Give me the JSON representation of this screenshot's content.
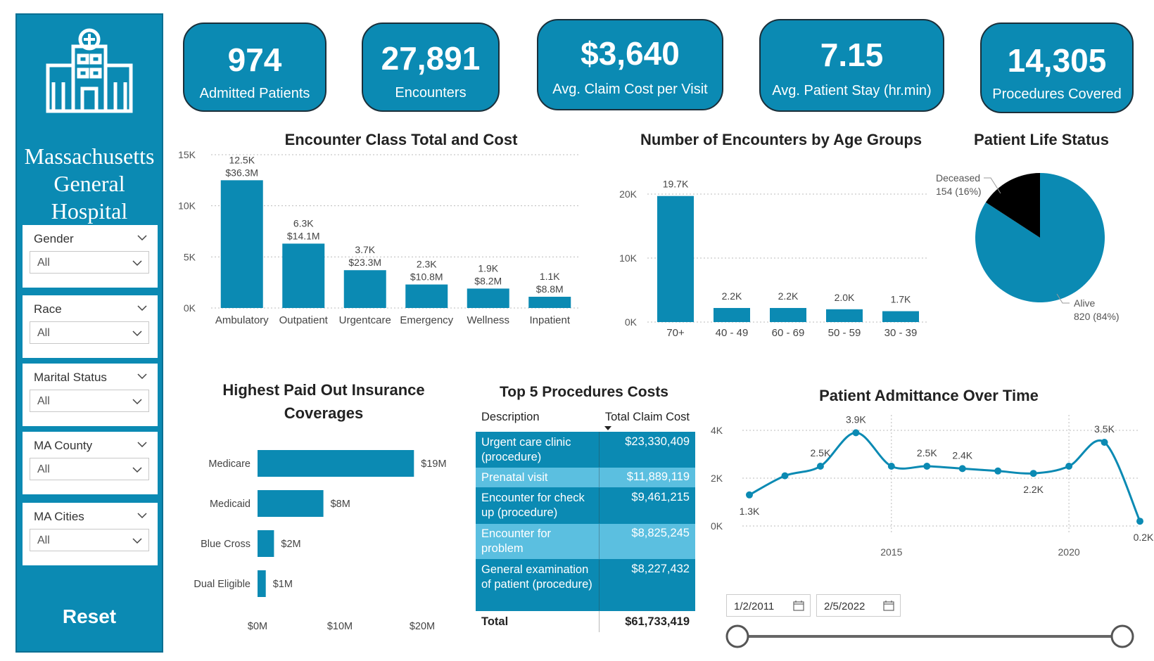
{
  "sidebar": {
    "hospital_name": "Massachusetts General Hospital",
    "filters": [
      {
        "label": "Gender",
        "value": "All"
      },
      {
        "label": "Race",
        "value": "All"
      },
      {
        "label": "Marital Status",
        "value": "All"
      },
      {
        "label": "MA County",
        "value": "All"
      },
      {
        "label": "MA Cities",
        "value": "All"
      }
    ],
    "reset_label": "Reset"
  },
  "kpis": [
    {
      "value": "974",
      "label": "Admitted Patients"
    },
    {
      "value": "27,891",
      "label": "Encounters"
    },
    {
      "value": "$3,640",
      "label": "Avg. Claim Cost per Visit"
    },
    {
      "value": "7.15",
      "label": "Avg. Patient Stay (hr.min)"
    },
    {
      "value": "14,305",
      "label": "Procedures Covered"
    }
  ],
  "colors": {
    "primary": "#0b8ab3",
    "light": "#5bbfe0",
    "dark": "#000000"
  },
  "table": {
    "title": "Top 5 Procedures Costs",
    "headers": {
      "description": "Description",
      "cost": "Total Claim Cost"
    },
    "rows": [
      {
        "description": "Urgent care clinic (procedure)",
        "cost": "$23,330,409"
      },
      {
        "description": "Prenatal visit",
        "cost": "$11,889,119"
      },
      {
        "description": "Encounter for check up (procedure)",
        "cost": "$9,461,215"
      },
      {
        "description": "Encounter for problem",
        "cost": "$8,825,245"
      },
      {
        "description": "General examination of patient (procedure)",
        "cost": "$8,227,432"
      }
    ],
    "total_label": "Total",
    "total_value": "$61,733,419"
  },
  "date_range": {
    "start": "1/2/2011",
    "end": "2/5/2022"
  },
  "chart_data": [
    {
      "type": "bar",
      "title": "Encounter Class Total and Cost",
      "categories": [
        "Ambulatory",
        "Outpatient",
        "Urgentcare",
        "Emergency",
        "Wellness",
        "Inpatient"
      ],
      "values": [
        12.5,
        6.3,
        3.7,
        2.3,
        1.9,
        1.1
      ],
      "data_labels": [
        "12.5K",
        "6.3K",
        "3.7K",
        "2.3K",
        "1.9K",
        "1.1K"
      ],
      "cost_labels": [
        "$36.3M",
        "$14.1M",
        "$23.3M",
        "$10.8M",
        "$8.2M",
        "$8.8M"
      ],
      "yticks": [
        "15K",
        "10K",
        "5K",
        "0K"
      ],
      "ylim": [
        0,
        15
      ]
    },
    {
      "type": "bar",
      "title": "Number of Encounters by Age Groups",
      "categories": [
        "70+",
        "40 - 49",
        "60 - 69",
        "50 - 59",
        "30 - 39"
      ],
      "values": [
        19.7,
        2.2,
        2.2,
        2.0,
        1.7
      ],
      "data_labels": [
        "19.7K",
        "2.2K",
        "2.2K",
        "2.0K",
        "1.7K"
      ],
      "yticks": [
        "20K",
        "10K",
        "0K"
      ],
      "ylim": [
        0,
        20
      ]
    },
    {
      "type": "pie",
      "title": "Patient Life Status",
      "slices": [
        {
          "name": "Alive",
          "value": 820,
          "label": "820 (84%)"
        },
        {
          "name": "Deceased",
          "value": 154,
          "label": "154 (16%)"
        }
      ]
    },
    {
      "type": "bar",
      "title": "Highest Paid Out Insurance Coverages",
      "categories": [
        "Medicare",
        "Medicaid",
        "Blue Cross",
        "Dual Eligible"
      ],
      "values": [
        19,
        8,
        2,
        1
      ],
      "data_labels": [
        "$19M",
        "$8M",
        "$2M",
        "$1M"
      ],
      "xticks": [
        "$0M",
        "$10M",
        "$20M"
      ],
      "xlim": [
        0,
        20
      ]
    },
    {
      "type": "line",
      "title": "Patient Admittance Over Time",
      "x": [
        2011,
        2012,
        2013,
        2014,
        2015,
        2016,
        2017,
        2018,
        2019,
        2020,
        2021,
        2022
      ],
      "values": [
        1.3,
        2.1,
        2.5,
        3.9,
        2.5,
        2.5,
        2.4,
        2.3,
        2.2,
        2.5,
        3.5,
        0.2
      ],
      "point_labels": [
        {
          "index": 0,
          "text": "1.3K"
        },
        {
          "index": 2,
          "text": "2.5K"
        },
        {
          "index": 3,
          "text": "3.9K"
        },
        {
          "index": 5,
          "text": "2.5K"
        },
        {
          "index": 6,
          "text": "2.4K"
        },
        {
          "index": 8,
          "text": "2.2K"
        },
        {
          "index": 10,
          "text": "3.5K"
        },
        {
          "index": 11,
          "text": "0.2K"
        }
      ],
      "yticks": [
        "4K",
        "2K",
        "0K"
      ],
      "xticks": [
        "2015",
        "2020"
      ],
      "ylim": [
        0,
        4
      ]
    }
  ]
}
